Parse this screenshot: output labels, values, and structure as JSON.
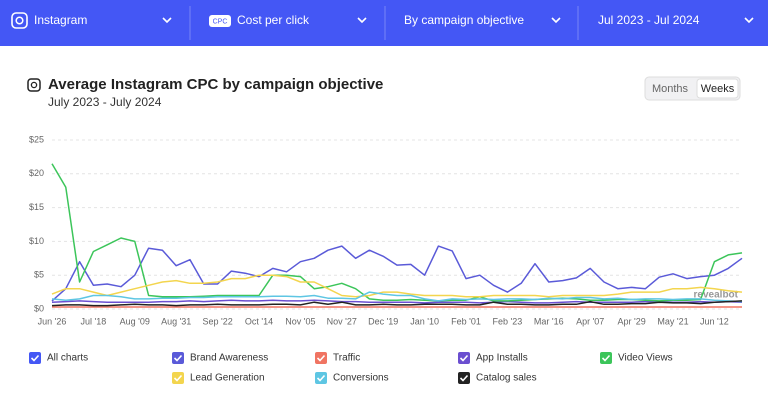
{
  "toolbar": {
    "platform": "Instagram",
    "metric_badge": "CPC",
    "metric": "Cost per click",
    "breakdown": "By campaign objective",
    "date_range": "Jul 2023 - Jul 2024"
  },
  "view_toggle": {
    "months": "Months",
    "weeks": "Weeks"
  },
  "legend_all": "All charts",
  "watermark": "revealbot",
  "chart_data": {
    "type": "line",
    "title": "Average Instagram CPC by campaign objective",
    "subtitle": "July 2023 - July 2024",
    "categories": [
      "Jun '26",
      null,
      null,
      "Jul '18",
      null,
      null,
      "Aug '09",
      null,
      null,
      "Aug '31",
      null,
      null,
      "Sep '22",
      null,
      null,
      "Oct '14",
      null,
      null,
      "Nov '05",
      null,
      null,
      "Nov '27",
      null,
      null,
      "Dec '19",
      null,
      null,
      "Jan '10",
      null,
      null,
      "Feb '01",
      null,
      null,
      "Feb '23",
      null,
      null,
      "Mar '16",
      null,
      null,
      "Apr '07",
      null,
      null,
      "Apr '29",
      null,
      null,
      "May '21",
      null,
      null,
      "Jun '12",
      null,
      null
    ],
    "ylim": [
      0,
      25
    ],
    "yticks": [
      {
        "value": 0,
        "label": "$0"
      },
      {
        "value": 5,
        "label": "$5"
      },
      {
        "value": 10,
        "label": "$10"
      },
      {
        "value": 15,
        "label": "$15"
      },
      {
        "value": 20,
        "label": "$20"
      },
      {
        "value": 25,
        "label": "$25"
      }
    ],
    "grid": true,
    "legend": "bottom",
    "series": [
      {
        "name": "Brand Awareness",
        "color": "#5a5ad8",
        "values": [
          1.2,
          3,
          7,
          3.5,
          3.7,
          3.3,
          5,
          9,
          8.7,
          6.4,
          7.3,
          3.7,
          3.7,
          5.6,
          5.3,
          4.8,
          6,
          5.5,
          7,
          7.5,
          8.7,
          9.3,
          7.5,
          8.7,
          7.8,
          6.5,
          6.6,
          5,
          9.3,
          8.6,
          4.5,
          5,
          3.5,
          2.5,
          3.8,
          6.7,
          4,
          4.2,
          4.6,
          6,
          4,
          3,
          3.2,
          3,
          4.7,
          5.2,
          4.5,
          4.8,
          5,
          6,
          7.5
        ]
      },
      {
        "name": "Traffic",
        "color": "#f07462",
        "values": [
          0.3,
          0.3,
          0.3,
          0.3,
          0.3,
          0.3,
          0.3,
          0.3,
          0.3,
          0.3,
          0.3,
          0.3,
          0.3,
          0.3,
          0.3,
          0.3,
          0.3,
          0.3,
          0.3,
          0.3,
          0.3,
          0.3,
          0.3,
          0.3,
          0.3,
          0.3,
          0.3,
          0.3,
          0.3,
          0.3,
          0.3,
          0.3,
          0.3,
          0.3,
          0.3,
          0.3,
          0.3,
          0.3,
          0.3,
          0.3,
          0.3,
          0.3,
          0.3,
          0.3,
          0.3,
          0.3,
          0.3,
          0.3,
          0.3,
          0.3,
          0.3
        ]
      },
      {
        "name": "App Installs",
        "color": "#6b4fd0",
        "values": [
          1,
          1.1,
          1.2,
          1.1,
          1,
          1,
          1,
          1,
          1.1,
          1.1,
          1.2,
          1.1,
          1.2,
          1.3,
          1.2,
          1.2,
          1.3,
          1.2,
          1.2,
          1.3,
          1.2,
          1.1,
          1.1,
          1,
          1,
          1,
          1,
          0.9,
          1,
          1,
          1,
          0.9,
          1,
          1.1,
          1,
          0.9,
          0.9,
          1,
          1.1,
          1,
          1,
          1,
          1,
          1.1,
          1.1,
          1,
          1,
          1.1,
          1,
          1.1,
          1
        ]
      },
      {
        "name": "Video Views",
        "color": "#3cc55a",
        "values": [
          21.5,
          18,
          4,
          8.5,
          9.5,
          10.5,
          10,
          2,
          1.8,
          1.8,
          1.8,
          1.9,
          2,
          2,
          2,
          2,
          5,
          5,
          4.8,
          3,
          3.3,
          3.8,
          3,
          1.5,
          1.3,
          1.3,
          1.4,
          1.3,
          1.2,
          1.3,
          1.3,
          1.8,
          1.2,
          1.2,
          1.3,
          1.4,
          1.5,
          1.6,
          1.5,
          1.3,
          1.3,
          1.4,
          1.4,
          1.3,
          1.2,
          1.3,
          1.3,
          1.4,
          7,
          8,
          8.3
        ]
      },
      {
        "name": "Lead Generation",
        "color": "#f3d54e",
        "values": [
          2.2,
          3,
          3,
          2.5,
          2,
          2.5,
          3,
          3.5,
          4,
          4.2,
          3.8,
          3.8,
          4,
          4.5,
          4.5,
          5,
          5,
          4.8,
          4,
          4,
          3,
          2,
          1.8,
          2,
          2.5,
          2.5,
          2.2,
          2,
          2,
          2,
          1.8,
          1.8,
          2,
          2,
          2,
          2,
          1.8,
          2,
          2,
          2,
          2,
          2.2,
          2.5,
          2.5,
          2.5,
          3,
          3,
          3.2,
          3,
          2.7,
          2.5
        ]
      },
      {
        "name": "Conversions",
        "color": "#5ec6e3",
        "values": [
          1.5,
          1.3,
          1.5,
          2,
          2,
          1.8,
          1.5,
          1.5,
          1.6,
          1.6,
          1.7,
          1.7,
          1.8,
          1.8,
          1.8,
          1.8,
          1.9,
          1.9,
          1.8,
          2,
          1.6,
          1.6,
          1.5,
          2.5,
          2.2,
          2,
          2,
          1.5,
          1.2,
          1.5,
          1.4,
          1.5,
          1.4,
          1.5,
          1.5,
          1.4,
          1.6,
          1.5,
          1.7,
          1.7,
          1.5,
          1.6,
          1.4,
          1.5,
          1.5,
          1.4,
          1.5,
          1.5,
          1.3,
          1.2,
          1.1
        ]
      },
      {
        "name": "Catalog sales",
        "color": "#222222",
        "values": [
          0.5,
          0.6,
          0.6,
          0.5,
          0.5,
          0.6,
          0.7,
          0.6,
          0.6,
          0.5,
          0.6,
          0.6,
          0.7,
          0.6,
          0.6,
          0.6,
          0.7,
          0.7,
          0.6,
          1,
          0.7,
          1,
          0.6,
          0.6,
          0.7,
          0.6,
          0.6,
          0.7,
          0.7,
          0.7,
          0.6,
          0.6,
          1,
          0.7,
          0.7,
          0.6,
          0.6,
          0.7,
          0.7,
          1.1,
          0.7,
          0.7,
          0.8,
          0.8,
          1,
          0.9,
          0.9,
          0.8,
          1,
          1.1,
          1.2
        ]
      }
    ]
  }
}
